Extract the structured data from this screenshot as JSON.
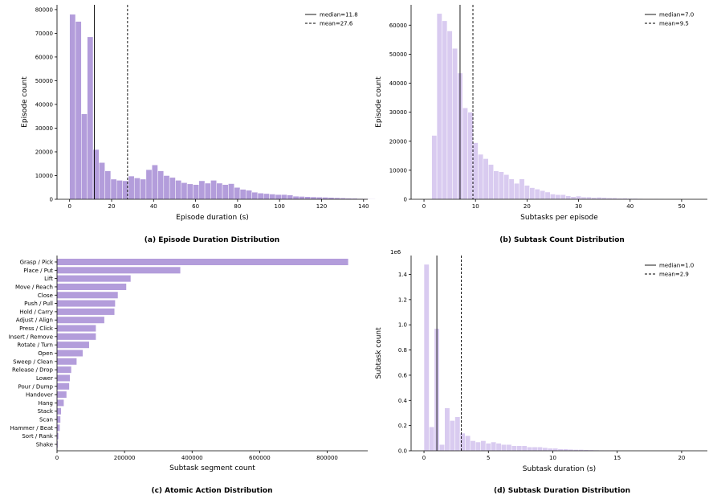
{
  "colors": {
    "histA": "#b39ddb",
    "histB": "#d9cbf0",
    "bar": "#b39ddb",
    "axis": "#000000"
  },
  "panels": {
    "a": {
      "caption": "(a) Episode Duration Distribution"
    },
    "b": {
      "caption": "(b) Subtask Count Distribution"
    },
    "c": {
      "caption": "(c) Atomic Action Distribution"
    },
    "d": {
      "caption": "(d) Subtask Duration Distribution"
    }
  },
  "chart_data": [
    {
      "id": "a",
      "type": "bar",
      "subtype": "histogram",
      "title": "(a) Episode Duration Distribution",
      "xlabel": "Episode duration (s)",
      "ylabel": "Episode count",
      "xlim": [
        -6,
        142
      ],
      "ylim": [
        0,
        82000
      ],
      "xticks": [
        0,
        20,
        40,
        60,
        80,
        100,
        120,
        140
      ],
      "yticks": [
        0,
        10000,
        20000,
        30000,
        40000,
        50000,
        60000,
        70000,
        80000
      ],
      "bin_start": 0,
      "bin_width": 2.8,
      "values": [
        78000,
        75000,
        36000,
        68500,
        21000,
        15500,
        12000,
        8500,
        8000,
        7800,
        9800,
        9000,
        8500,
        12500,
        14500,
        12000,
        10000,
        9200,
        8000,
        7000,
        6500,
        6200,
        7800,
        6800,
        8000,
        6800,
        6200,
        6600,
        5000,
        4200,
        3800,
        3000,
        2600,
        2400,
        2200,
        2000,
        2000,
        1800,
        1300,
        1200,
        1100,
        1000,
        900,
        850,
        750,
        650,
        550,
        450,
        400,
        300,
        250,
        200
      ],
      "vlines": [
        {
          "label": "median=11.8",
          "x": 11.8,
          "style": "solid"
        },
        {
          "label": "mean=27.6",
          "x": 27.6,
          "style": "dashed"
        }
      ],
      "legend": "top-right",
      "grid": false
    },
    {
      "id": "b",
      "type": "bar",
      "subtype": "histogram",
      "title": "(b) Subtask Count Distribution",
      "xlabel": "Subtasks per episode",
      "ylabel": "Episode count",
      "xlim": [
        -2.5,
        55
      ],
      "ylim": [
        0,
        67000
      ],
      "xticks": [
        0,
        10,
        20,
        30,
        40,
        50
      ],
      "yticks": [
        0,
        10000,
        20000,
        30000,
        40000,
        50000,
        60000
      ],
      "bin_start": 1.5,
      "bin_width": 1.0,
      "values": [
        22000,
        64000,
        61500,
        58000,
        52000,
        43500,
        31500,
        30000,
        19500,
        15500,
        14000,
        12000,
        9800,
        9500,
        8500,
        7000,
        5500,
        7000,
        4800,
        4000,
        3500,
        3000,
        2500,
        1800,
        1600,
        1600,
        1200,
        900,
        1100,
        800,
        800,
        600,
        700,
        600,
        500,
        500,
        350,
        400,
        300,
        300,
        250,
        200,
        200,
        180,
        150,
        120,
        100,
        80,
        60,
        60
      ],
      "vlines": [
        {
          "label": "median=7.0",
          "x": 7.0,
          "style": "solid"
        },
        {
          "label": "mean=9.5",
          "x": 9.5,
          "style": "dashed"
        }
      ],
      "legend": "top-right",
      "grid": false
    },
    {
      "id": "c",
      "type": "bar",
      "orientation": "horizontal",
      "title": "(c) Atomic Action Distribution",
      "xlabel": "Subtask segment count",
      "ylabel": "",
      "xlim": [
        0,
        920000
      ],
      "xticks": [
        0,
        200000,
        400000,
        600000,
        800000
      ],
      "categories": [
        "Grasp / Pick",
        "Place / Put",
        "Lift",
        "Move / Reach",
        "Close",
        "Push / Pull",
        "Hold / Carry",
        "Adjust / Align",
        "Press / Click",
        "Insert / Remove",
        "Rotate / Turn",
        "Open",
        "Sweep / Clean",
        "Release / Drop",
        "Lower",
        "Pour / Dump",
        "Handover",
        "Hang",
        "Stack",
        "Scan",
        "Hammer / Beat",
        "Sort / Rank",
        "Shake"
      ],
      "values": [
        862000,
        365000,
        218000,
        205000,
        180000,
        172000,
        170000,
        140000,
        115000,
        115000,
        95000,
        76000,
        58000,
        42000,
        38000,
        36000,
        28000,
        20000,
        12000,
        10000,
        8000,
        4000,
        2000
      ],
      "grid": false
    },
    {
      "id": "d",
      "type": "bar",
      "subtype": "histogram",
      "title": "(d) Subtask Duration Distribution",
      "xlabel": "Subtask duration (s)",
      "ylabel": "Subtask count",
      "y_offset_label": "1e6",
      "xlim": [
        -1,
        22
      ],
      "ylim": [
        0,
        1.55
      ],
      "xticks": [
        0,
        5,
        10,
        15,
        20
      ],
      "yticks": [
        0.0,
        0.2,
        0.4,
        0.6,
        0.8,
        1.0,
        1.2,
        1.4
      ],
      "bin_start": 0,
      "bin_width": 0.4,
      "values": [
        1.48,
        0.19,
        0.97,
        0.05,
        0.34,
        0.24,
        0.27,
        0.14,
        0.12,
        0.08,
        0.07,
        0.08,
        0.06,
        0.07,
        0.06,
        0.05,
        0.05,
        0.04,
        0.04,
        0.04,
        0.03,
        0.03,
        0.03,
        0.025,
        0.02,
        0.02,
        0.015,
        0.015,
        0.012,
        0.01,
        0.01,
        0.008,
        0.007,
        0.006,
        0.005,
        0.004,
        0.004,
        0.003,
        0.003,
        0.002
      ],
      "vlines": [
        {
          "label": "median=1.0",
          "x": 1.0,
          "style": "solid"
        },
        {
          "label": "mean=2.9",
          "x": 2.9,
          "style": "dashed"
        }
      ],
      "legend": "top-right",
      "grid": false
    }
  ]
}
